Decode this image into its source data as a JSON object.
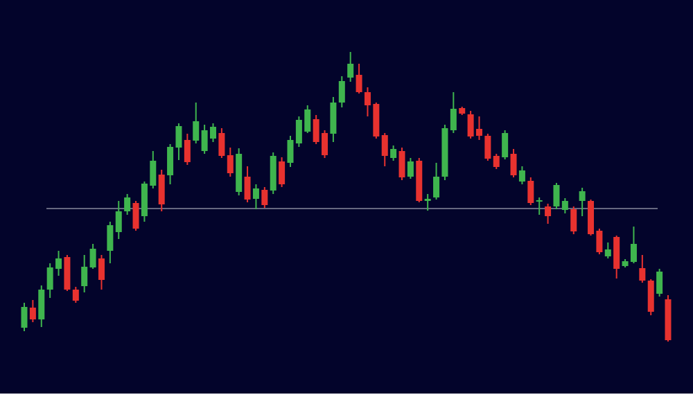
{
  "chart_data": {
    "type": "candlestick",
    "open": [
      95,
      124,
      107,
      150,
      180,
      197,
      150,
      155,
      182,
      195,
      206,
      233,
      263,
      275,
      256,
      300,
      316,
      315,
      355,
      366,
      365,
      350,
      368,
      376,
      344,
      291,
      313,
      281,
      294,
      293,
      335,
      333,
      361,
      378,
      396,
      376,
      375,
      420,
      456,
      460,
      435,
      418,
      373,
      340,
      350,
      313,
      336,
      278,
      283,
      313,
      380,
      412,
      403,
      382,
      372,
      343,
      341,
      346,
      306,
      307,
      277,
      270,
      270,
      265,
      266,
      278,
      278,
      235,
      198,
      226,
      184,
      190,
      181,
      163,
      144,
      136
    ],
    "high": [
      131,
      135,
      156,
      188,
      206,
      200,
      154,
      200,
      216,
      200,
      248,
      278,
      288,
      278,
      306,
      350,
      323,
      360,
      390,
      375,
      420,
      388,
      390,
      383,
      355,
      354,
      328,
      302,
      298,
      348,
      341,
      372,
      400,
      416,
      402,
      380,
      428,
      458,
      493,
      476,
      442,
      420,
      376,
      358,
      355,
      340,
      340,
      288,
      333,
      388,
      435,
      414,
      408,
      400,
      375,
      346,
      380,
      353,
      328,
      312,
      283,
      274,
      304,
      282,
      270,
      297,
      280,
      238,
      218,
      228,
      194,
      241,
      200,
      165,
      180,
      142
    ],
    "low": [
      90,
      103,
      96,
      138,
      170,
      148,
      131,
      146,
      180,
      150,
      188,
      223,
      258,
      235,
      248,
      296,
      263,
      302,
      337,
      330,
      361,
      346,
      363,
      340,
      313,
      286,
      276,
      266,
      268,
      288,
      298,
      327,
      356,
      376,
      360,
      340,
      363,
      413,
      450,
      433,
      400,
      368,
      328,
      336,
      308,
      310,
      276,
      264,
      280,
      308,
      376,
      402,
      368,
      366,
      336,
      324,
      338,
      312,
      302,
      272,
      258,
      245,
      266,
      260,
      230,
      256,
      228,
      201,
      195,
      166,
      182,
      188,
      160,
      113,
      140,
      75
    ],
    "close": [
      125,
      107,
      150,
      182,
      195,
      150,
      134,
      183,
      209,
      164,
      243,
      263,
      283,
      238,
      303,
      336,
      273,
      356,
      386,
      334,
      393,
      380,
      385,
      343,
      318,
      346,
      280,
      296,
      272,
      343,
      302,
      366,
      395,
      410,
      363,
      344,
      420,
      451,
      476,
      435,
      416,
      371,
      343,
      353,
      312,
      335,
      278,
      281,
      313,
      383,
      411,
      404,
      371,
      372,
      339,
      327,
      376,
      315,
      322,
      275,
      279,
      256,
      301,
      278,
      234,
      292,
      230,
      204,
      208,
      180,
      191,
      216,
      163,
      118,
      176,
      77
    ],
    "up_color": "#3fb54e",
    "down_color": "#e8322f",
    "ylim": [
      0,
      568
    ],
    "neckline": 267,
    "neckline_color": "#c9cbd6",
    "background": "#03042b"
  }
}
